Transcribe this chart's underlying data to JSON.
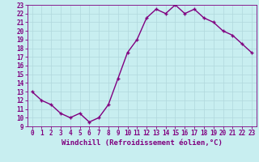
{
  "x": [
    0,
    1,
    2,
    3,
    4,
    5,
    6,
    7,
    8,
    9,
    10,
    11,
    12,
    13,
    14,
    15,
    16,
    17,
    18,
    19,
    20,
    21,
    22,
    23
  ],
  "y": [
    13,
    12,
    11.5,
    10.5,
    10,
    10.5,
    9.5,
    10,
    11.5,
    14.5,
    17.5,
    19,
    21.5,
    22.5,
    22,
    23,
    22,
    22.5,
    21.5,
    21,
    20,
    19.5,
    18.5,
    17.5
  ],
  "line_color": "#800080",
  "marker": "+",
  "marker_size": 3,
  "bg_color": "#c8eef0",
  "grid_color": "#b0d8dc",
  "xlabel": "Windchill (Refroidissement éolien,°C)",
  "ylim": [
    9,
    23
  ],
  "xlim": [
    -0.5,
    23.5
  ],
  "yticks": [
    9,
    10,
    11,
    12,
    13,
    14,
    15,
    16,
    17,
    18,
    19,
    20,
    21,
    22,
    23
  ],
  "xticks": [
    0,
    1,
    2,
    3,
    4,
    5,
    6,
    7,
    8,
    9,
    10,
    11,
    12,
    13,
    14,
    15,
    16,
    17,
    18,
    19,
    20,
    21,
    22,
    23
  ],
  "tick_color": "#800080",
  "tick_fontsize": 5.5,
  "xlabel_fontsize": 6.5,
  "line_width": 1.0,
  "marker_color": "#800080",
  "marker_edge_width": 1.0
}
